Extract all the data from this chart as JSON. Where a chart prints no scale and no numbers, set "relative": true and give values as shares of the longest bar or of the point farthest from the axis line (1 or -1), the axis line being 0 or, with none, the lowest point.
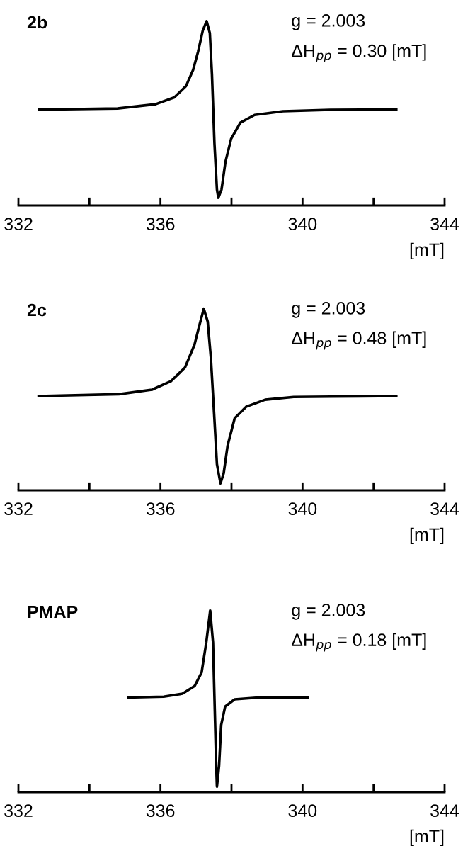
{
  "chart_data": [
    {
      "type": "line",
      "title": "2b",
      "xlabel": "[mT]",
      "relative": true,
      "annotations": [
        "g = 2.003",
        "ΔH$_{pp}$ = 0.30 [mT]"
      ],
      "xlim": [
        332,
        344
      ],
      "xticks": [
        332,
        {
          "value": 334,
          "label": null
        },
        336,
        {
          "value": 338,
          "label": null
        },
        340,
        {
          "value": 342,
          "label": null
        },
        344
      ],
      "tick_labels": "x",
      "grid": false,
      "legend": false,
      "series": [
        {
          "color": "#000000",
          "x": [
            332.59,
            334.79,
            335.86,
            336.39,
            336.72,
            336.92,
            337.06,
            337.19,
            337.3,
            337.39,
            337.45,
            337.52,
            337.59,
            337.63,
            337.72,
            337.83,
            337.99,
            338.25,
            338.65,
            339.45,
            340.78,
            342.64
          ],
          "values": [
            0.52,
            0.526,
            0.549,
            0.586,
            0.648,
            0.736,
            0.835,
            0.948,
            1,
            0.935,
            0.711,
            0.337,
            0.087,
            0.042,
            0.087,
            0.237,
            0.362,
            0.449,
            0.491,
            0.511,
            0.519,
            0.52
          ]
        }
      ]
    },
    {
      "type": "line",
      "title": "2c",
      "xlabel": "[mT]",
      "relative": true,
      "annotations": [
        "g = 2.003",
        "ΔH$_{pp}$ = 0.48 [mT]"
      ],
      "xlim": [
        332,
        344
      ],
      "xticks": [
        332,
        {
          "value": 334,
          "label": null
        },
        336,
        {
          "value": 338,
          "label": null
        },
        340,
        {
          "value": 342,
          "label": null
        },
        344
      ],
      "tick_labels": "x",
      "grid": false,
      "legend": false,
      "series": [
        {
          "color": "#000000",
          "x": [
            332.57,
            334.83,
            335.76,
            336.29,
            336.69,
            336.96,
            337.09,
            337.22,
            337.33,
            337.42,
            337.51,
            337.59,
            337.69,
            337.78,
            337.89,
            338.09,
            338.42,
            338.95,
            339.75,
            340.81,
            342.64
          ],
          "values": [
            0.519,
            0.529,
            0.554,
            0.6,
            0.676,
            0.803,
            0.904,
            1,
            0.929,
            0.727,
            0.423,
            0.144,
            0.038,
            0.094,
            0.246,
            0.397,
            0.461,
            0.499,
            0.514,
            0.516,
            0.519
          ]
        }
      ]
    },
    {
      "type": "line",
      "title": "PMAP",
      "xlabel": "[mT]",
      "relative": true,
      "annotations": [
        "g = 2.003",
        "ΔH$_{pp}$ = 0.18 [mT]"
      ],
      "xlim": [
        332,
        344
      ],
      "xticks": [
        332,
        {
          "value": 334,
          "label": null
        },
        336,
        {
          "value": 338,
          "label": null
        },
        340,
        {
          "value": 342,
          "label": null
        },
        344
      ],
      "tick_labels": "x",
      "grid": false,
      "legend": false,
      "series": [
        {
          "color": "#000000",
          "x": [
            335.1,
            336.09,
            336.62,
            336.96,
            337.16,
            337.29,
            337.4,
            337.48,
            337.53,
            337.57,
            337.59,
            337.65,
            337.71,
            337.82,
            338.09,
            338.75,
            340.15
          ],
          "values": [
            0.521,
            0.526,
            0.542,
            0.584,
            0.66,
            0.824,
            1,
            0.824,
            0.446,
            0.144,
            0.03,
            0.144,
            0.37,
            0.471,
            0.511,
            0.521,
            0.521
          ]
        }
      ]
    }
  ]
}
